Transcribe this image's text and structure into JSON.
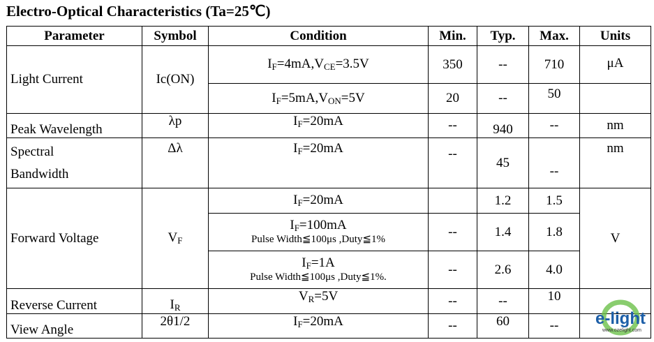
{
  "title": "Electro-Optical Characteristics (Ta=25℃)",
  "headers": [
    "Parameter",
    "Symbol",
    "Condition",
    "Min.",
    "Typ.",
    "Max.",
    "Units"
  ],
  "rows": {
    "light": {
      "param": "Light Current",
      "symbol": "Ic(ON)",
      "units": "μA",
      "c1": [
        {
          "t": "I"
        },
        {
          "s": "F"
        },
        {
          "t": "=4mA,V"
        },
        {
          "s": "CE"
        },
        {
          "t": "=3.5V"
        }
      ],
      "min1": "350",
      "typ1": "--",
      "max1": "710",
      "c2": [
        {
          "t": "I"
        },
        {
          "s": "F"
        },
        {
          "t": "=5mA,V"
        },
        {
          "s": "ON"
        },
        {
          "t": "=5V"
        }
      ],
      "min2": "20",
      "typ2": "--",
      "max2": "50"
    },
    "peak": {
      "param": "Peak Wavelength",
      "symbol": "λp",
      "cond": [
        {
          "t": "I"
        },
        {
          "s": "F"
        },
        {
          "t": "=20mA"
        }
      ],
      "min": "--",
      "typ": "940",
      "max": "--",
      "units": "nm"
    },
    "spectral": {
      "param1": "Spectral",
      "param2": "Bandwidth",
      "symbol": "Δλ",
      "cond": [
        {
          "t": "I"
        },
        {
          "s": "F"
        },
        {
          "t": "=20mA"
        }
      ],
      "min": "--",
      "typ": "45",
      "max": "--",
      "units": "nm"
    },
    "forward": {
      "param": "Forward Voltage",
      "symbol": [
        {
          "t": "V"
        },
        {
          "s": "F"
        }
      ],
      "units": "V",
      "c1": [
        {
          "t": "I"
        },
        {
          "s": "F"
        },
        {
          "t": "=20mA"
        }
      ],
      "typ1": "1.2",
      "max1": "1.5",
      "c2": [
        {
          "t": "I"
        },
        {
          "s": "F"
        },
        {
          "t": "=100mA"
        }
      ],
      "c2note": "Pulse Width≦100μs ,Duty≦1%",
      "min2": "--",
      "typ2": "1.4",
      "max2": "1.8",
      "c3": [
        {
          "t": "I"
        },
        {
          "s": "F"
        },
        {
          "t": "=1A"
        }
      ],
      "c3note": "Pulse Width≦100μs ,Duty≦1%.",
      "min3": "--",
      "typ3": "2.6",
      "max3": "4.0"
    },
    "reverse": {
      "param": "Reverse Current",
      "symbol": [
        {
          "t": "I"
        },
        {
          "s": "R"
        }
      ],
      "cond": [
        {
          "t": "V"
        },
        {
          "s": "R"
        },
        {
          "t": "=5V"
        }
      ],
      "min": "--",
      "typ": "--",
      "max": "10",
      "units": ""
    },
    "view": {
      "param": "View Angle",
      "symbol": "2θ1/2",
      "cond": [
        {
          "t": "I"
        },
        {
          "s": "F"
        },
        {
          "t": "=20mA"
        }
      ],
      "min": "--",
      "typ": "60",
      "max": "--",
      "units": ""
    }
  },
  "logo": {
    "text": "e-light",
    "url": "www.ozelight.com"
  },
  "colors": {
    "logo_blue": "#1d5fa8",
    "logo_green": "#6cc04a"
  }
}
